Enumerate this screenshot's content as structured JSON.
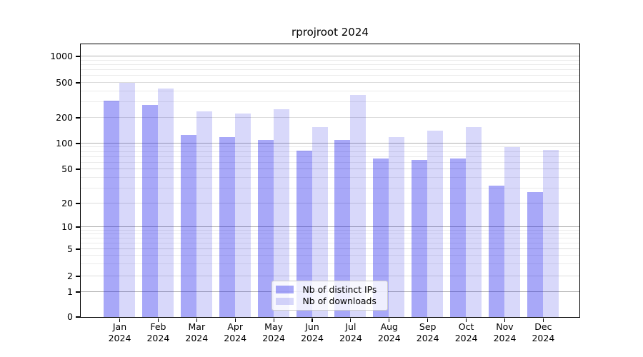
{
  "chart_data": {
    "type": "bar",
    "title": "rprojroot 2024",
    "categories": [
      "Jan",
      "Feb",
      "Mar",
      "Apr",
      "May",
      "Jun",
      "Jul",
      "Aug",
      "Sep",
      "Oct",
      "Nov",
      "Dec"
    ],
    "xtick_year": "2024",
    "series": [
      {
        "name": "Nb of distinct IPs",
        "color": "rgba(15,15,235,0.36)",
        "color_hex_on_white": "#a9a9f8",
        "values": [
          310,
          280,
          125,
          118,
          110,
          81,
          110,
          66,
          64,
          66,
          32,
          27
        ]
      },
      {
        "name": "Nb of downloads",
        "color": "rgba(15,15,225,0.16)",
        "color_hex_on_white": "#d8d8fa",
        "values": [
          500,
          430,
          235,
          220,
          250,
          155,
          360,
          118,
          140,
          153,
          90,
          84
        ]
      }
    ],
    "yscale": "symlog-like (log above 1, linear 0–1)",
    "ytick_labels": [
      "0",
      "1",
      "2",
      "5",
      "10",
      "20",
      "50",
      "100",
      "200",
      "500",
      "1000"
    ],
    "ylim": [
      0,
      1400
    ],
    "xlabel": "",
    "ylabel": "",
    "grid": true,
    "legend_position": "lower center, inside axes"
  }
}
